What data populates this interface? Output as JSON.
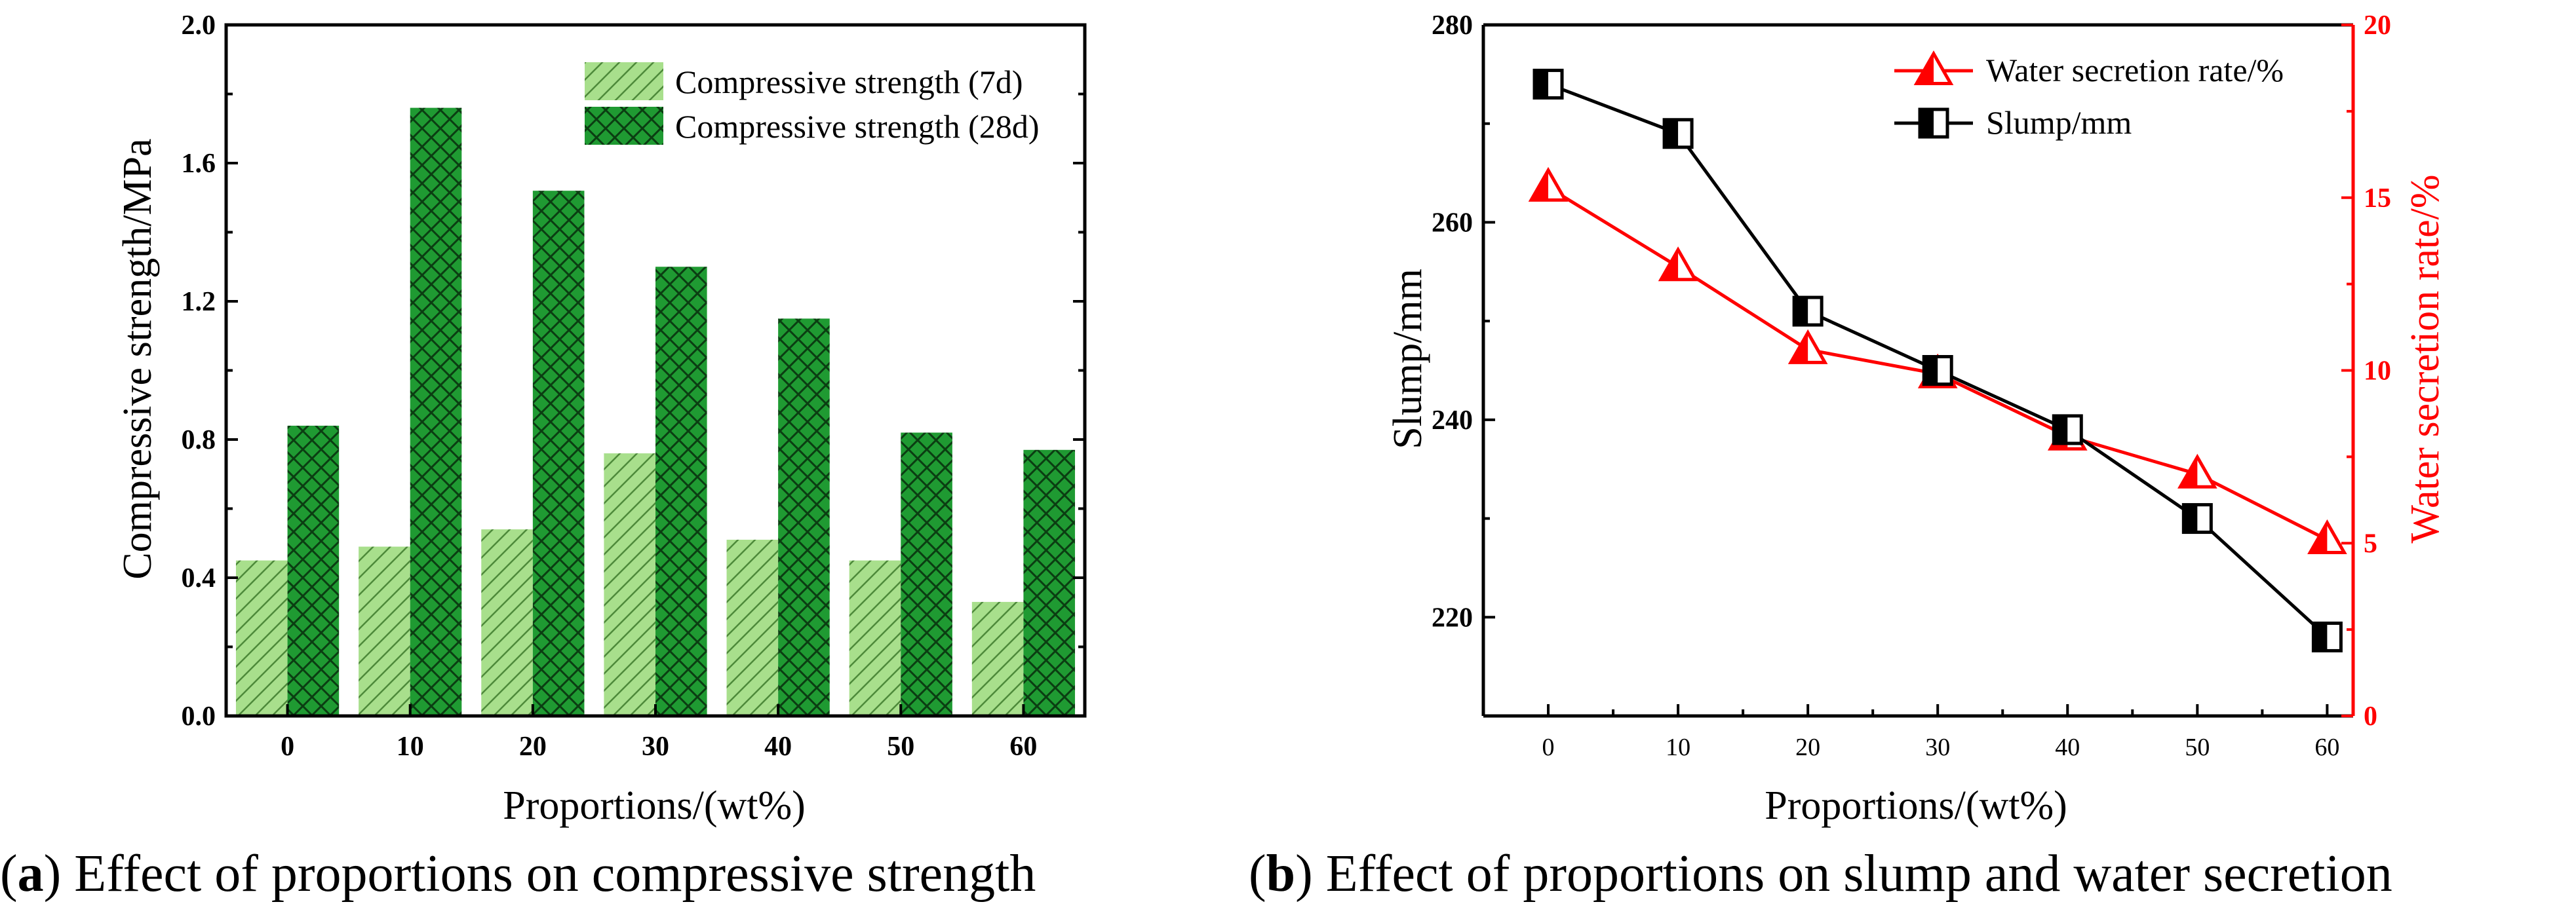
{
  "chart_data": [
    {
      "type": "bar",
      "caption": {
        "letter": "a",
        "text": "Effect of proportions on compressive strength"
      },
      "xlabel": "Proportions/(wt%)",
      "ylabel": "Compressive strength/MPa",
      "categories": [
        "0",
        "10",
        "20",
        "30",
        "40",
        "50",
        "60"
      ],
      "ylim": [
        0,
        2.0
      ],
      "yticks": [
        "0.0",
        "0.4",
        "0.8",
        "1.2",
        "1.6",
        "2.0"
      ],
      "legend_position": "top-right",
      "series": [
        {
          "name": "Compressive strength (7d)",
          "color": "#a8df8c",
          "pattern": "diagonal-hatch",
          "values": [
            0.45,
            0.49,
            0.54,
            0.76,
            0.51,
            0.45,
            0.33
          ]
        },
        {
          "name": "Compressive strength (28d)",
          "color": "#1f9a32",
          "pattern": "cross-hatch",
          "values": [
            0.84,
            1.76,
            1.52,
            1.3,
            1.15,
            0.82,
            0.77
          ]
        }
      ]
    },
    {
      "type": "line",
      "caption": {
        "letter": "b",
        "text": "Effect of proportions on slump and water secretion"
      },
      "xlabel": "Proportions/(wt%)",
      "ylabel": "Slump/mm",
      "ylabel_right": "Water secretion rate/%",
      "x": [
        0,
        10,
        20,
        30,
        40,
        50,
        60
      ],
      "xticks": [
        "0",
        "10",
        "20",
        "30",
        "40",
        "50",
        "60"
      ],
      "xlim": [
        -5,
        62
      ],
      "ylim": [
        210,
        280
      ],
      "yticks": [
        "220",
        "240",
        "260",
        "280"
      ],
      "ylim_right": [
        0,
        20
      ],
      "yticks_right": [
        "0",
        "5",
        "10",
        "15",
        "20"
      ],
      "legend_position": "top-right",
      "series": [
        {
          "name": "Water secretion rate/%",
          "axis": "right",
          "color": "#ff0000",
          "marker": "triangle-half",
          "values": [
            15.3,
            13.0,
            10.6,
            9.9,
            8.1,
            7.0,
            5.1
          ]
        },
        {
          "name": "Slump/mm",
          "axis": "left",
          "color": "#000000",
          "marker": "square-half",
          "values": [
            274,
            269,
            251,
            245,
            239,
            230,
            218
          ]
        }
      ]
    }
  ]
}
